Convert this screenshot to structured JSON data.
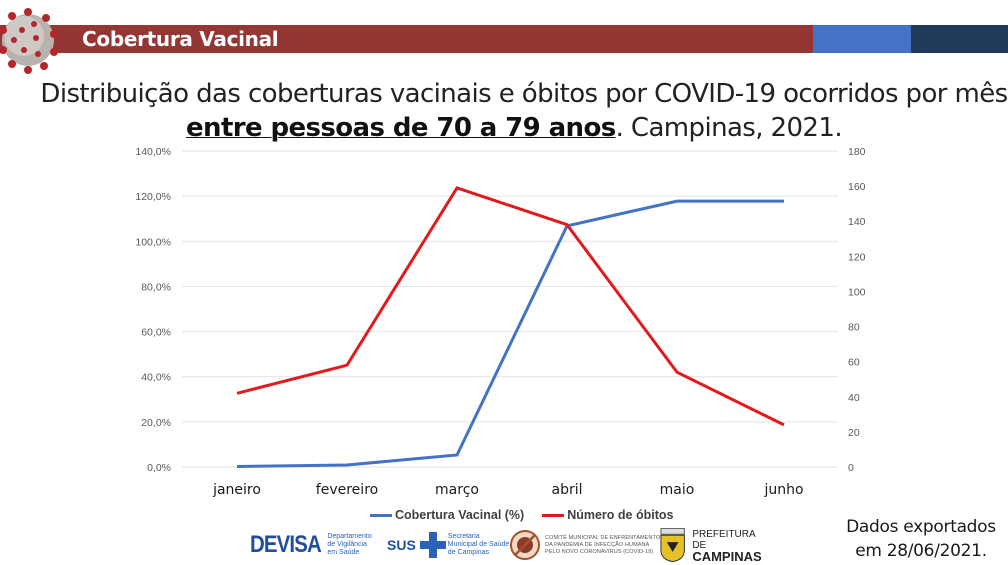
{
  "header": {
    "section_title": "Cobertura Vacinal",
    "bar_colors": [
      "#943634",
      "#4472c4",
      "#203a5c"
    ]
  },
  "title": {
    "line1": "Distribuição das coberturas vacinais e óbitos por COVID-19 ocorridos por mês",
    "line2_bold": "entre pessoas de 70 a 79 anos",
    "line2_rest": ". Campinas, 2021."
  },
  "legend": {
    "series1": "Cobertura Vacinal (%)",
    "series2": "Número de óbitos"
  },
  "footer": {
    "note_line1": "Dados exportados",
    "note_line2": "em 28/06/2021."
  },
  "logos": {
    "devisa": "DEVISA",
    "devisa_sub": [
      "Departamento",
      "de Vigilância",
      "em Saúde"
    ],
    "sus": "SUS",
    "sus_sub": [
      "Secretaria",
      "Municipal de Saúde",
      "de Campinas"
    ],
    "comite": [
      "COMITÊ MUNICIPAL DE ENFRENTAMENTO",
      "DA PANDEMIA DE INFECÇÃO HUMANA",
      "PELO NOVO CORONAVÍRUS (COVID-19)"
    ],
    "prefeitura_top": "PREFEITURA DE",
    "prefeitura_bottom": "CAMPINAS"
  },
  "chart_data": {
    "type": "line",
    "title": "Distribuição das coberturas vacinais e óbitos por COVID-19 ocorridos por mês entre pessoas de 70 a 79 anos. Campinas, 2021.",
    "categories": [
      "janeiro",
      "fevereiro",
      "março",
      "abril",
      "maio",
      "junho"
    ],
    "series": [
      {
        "name": "Cobertura Vacinal (%)",
        "axis": "left",
        "color": "#4472c4",
        "values": [
          0.2,
          0.9,
          5.3,
          106.8,
          117.8,
          117.8
        ]
      },
      {
        "name": "Número de óbitos",
        "axis": "right",
        "color": "#e31a1c",
        "values": [
          42,
          58,
          159,
          138,
          54,
          24
        ]
      }
    ],
    "xlabel": "",
    "ylabel_left": "",
    "ylabel_right": "",
    "ylim_left": [
      0,
      140
    ],
    "ylim_right": [
      0,
      180
    ],
    "yticks_left": [
      "0,0%",
      "20,0%",
      "40,0%",
      "60,0%",
      "80,0%",
      "100,0%",
      "120,0%",
      "140,0%"
    ],
    "yticks_right": [
      "0",
      "20",
      "40",
      "60",
      "80",
      "100",
      "120",
      "140",
      "160",
      "180"
    ],
    "grid": true,
    "legend_position": "bottom"
  }
}
